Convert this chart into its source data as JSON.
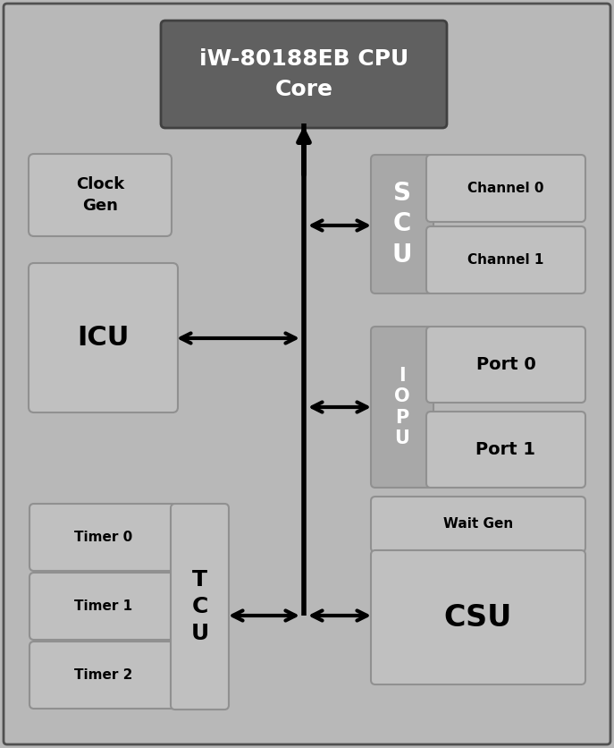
{
  "bg_color": "#b8b8b8",
  "title": "iW-80188EB CPU\nCore",
  "title_bg": "#606060",
  "title_text_color": "white",
  "clock_gen_text": "Clock\nGen",
  "icu_text": "ICU",
  "scu_label_text": "S\nC\nU",
  "scu_ch0_text": "Channel 0",
  "scu_ch1_text": "Channel 1",
  "iopu_label_text": "I\nO\nP\nU",
  "port0_text": "Port 0",
  "port1_text": "Port 1",
  "tcu_label_text": "T\nC\nU",
  "timer0_text": "Timer 0",
  "timer1_text": "Timer 1",
  "timer2_text": "Timer 2",
  "waitgen_text": "Wait Gen",
  "csu_text": "CSU",
  "light_box_color": "#c0c0c0",
  "medium_box_color": "#a8a8a8",
  "dark_label_color": "#989898",
  "box_edge_color": "#909090",
  "arrow_color": "black",
  "main_border_color": "#505050"
}
